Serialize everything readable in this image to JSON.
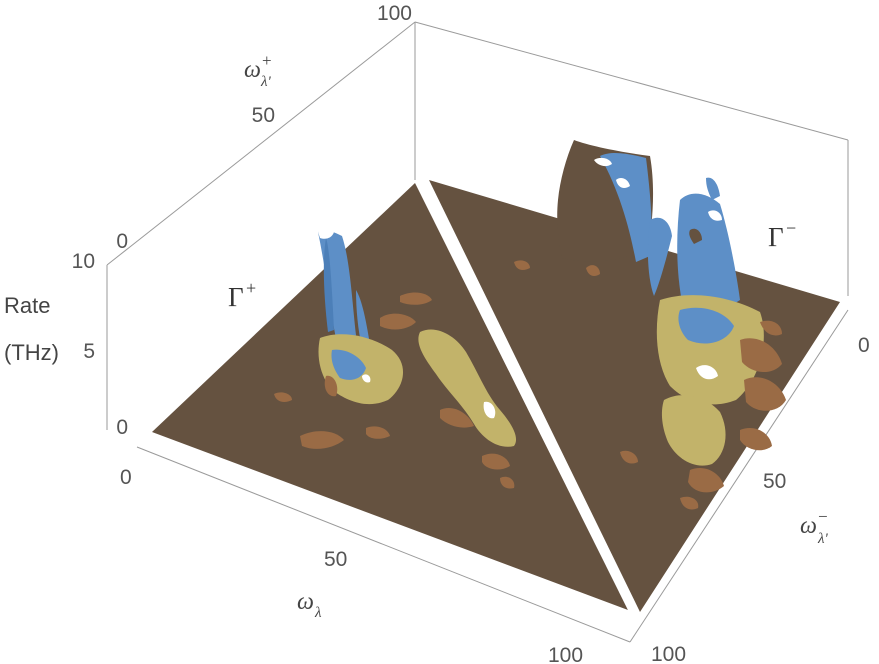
{
  "chart_data": {
    "type": "surface3d",
    "x_axis": {
      "symbol": "ω",
      "subscript": "λ",
      "ticks": [
        "0",
        "50",
        "100"
      ],
      "range": [
        0,
        100
      ]
    },
    "y_axis_plus": {
      "symbol": "ω",
      "subscript": "λ'",
      "superscript": "+",
      "ticks": [
        "0",
        "50",
        "100"
      ],
      "range": [
        0,
        100
      ]
    },
    "y_axis_minus": {
      "symbol": "ω",
      "subscript": "λ'",
      "superscript": "−",
      "ticks": [
        "0",
        "50",
        "100"
      ],
      "range": [
        0,
        100
      ]
    },
    "z_axis": {
      "label_line1": "Rate",
      "label_line2": "(THz)",
      "ticks": [
        "0",
        "5",
        "10"
      ],
      "range": [
        0,
        10
      ]
    },
    "panels": [
      {
        "name": "Γ",
        "superscript": "+"
      },
      {
        "name": "Γ",
        "superscript": "−"
      }
    ],
    "colors": {
      "base": "#655240",
      "low": "#9a6b45",
      "mid": "#c2b36a",
      "high": "#5d8fc7",
      "peak": "#ffffff"
    }
  }
}
